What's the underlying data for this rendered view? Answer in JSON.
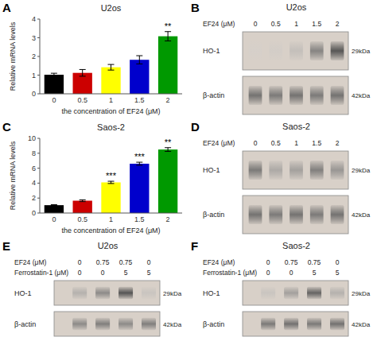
{
  "chart_data": [
    {
      "type": "bar",
      "panel_label": "A",
      "title": "U2os",
      "xlabel": "the concentration of EF24 (μM)",
      "ylabel": "Relative mRNA levels",
      "categories": [
        "0",
        "0.5",
        "1",
        "1.5",
        "2"
      ],
      "values": [
        1.02,
        1.12,
        1.42,
        1.82,
        3.08
      ],
      "errors": [
        0.08,
        0.18,
        0.15,
        0.22,
        0.25
      ],
      "colors": [
        "#000000",
        "#cc0000",
        "#ffff00",
        "#0000cc",
        "#009900"
      ],
      "ylim": [
        0,
        4
      ],
      "yticks": [
        0,
        1,
        2,
        3,
        4
      ],
      "grid": false,
      "annotations": [
        {
          "text": "**",
          "x": "2"
        }
      ]
    },
    {
      "type": "bar",
      "panel_label": "C",
      "title": "Saos-2",
      "xlabel": "the concentration of EF24 (μM)",
      "ylabel": "Relative mRNA levels",
      "categories": [
        "0",
        "0.5",
        "1",
        "1.5",
        "2"
      ],
      "values": [
        1.05,
        1.65,
        4.1,
        6.6,
        8.5
      ],
      "errors": [
        0.07,
        0.12,
        0.15,
        0.2,
        0.25
      ],
      "colors": [
        "#000000",
        "#cc0000",
        "#ffff00",
        "#0000cc",
        "#009900"
      ],
      "ylim": [
        0,
        10
      ],
      "yticks": [
        0,
        2,
        4,
        6,
        8,
        10
      ],
      "grid": false,
      "annotations": [
        {
          "text": "***",
          "x": "1"
        },
        {
          "text": "***",
          "x": "1.5"
        },
        {
          "text": "**",
          "x": "2"
        }
      ]
    },
    {
      "type": "blot",
      "panel_label": "B",
      "title": "U2os",
      "color": "#d8d0c8",
      "lane_labels": [
        {
          "name": "EF24 (μM)",
          "labels": [
            "0",
            "0.5",
            "1",
            "1.5",
            "2"
          ]
        }
      ],
      "series": [
        {
          "name": "HO-1",
          "size_label": "29kDa",
          "values": [
            0.25,
            0.3,
            0.45,
            0.78,
            0.95
          ]
        },
        {
          "name": "β-actin",
          "size_label": "42kDa",
          "values": [
            0.85,
            0.82,
            0.85,
            0.82,
            0.85
          ]
        }
      ]
    },
    {
      "type": "blot",
      "panel_label": "D",
      "title": "Saos-2",
      "color": "#d8d0c8",
      "lane_labels": [
        {
          "name": "EF24 (μM)",
          "labels": [
            "0",
            "0.5",
            "1",
            "1.5",
            "2"
          ]
        }
      ],
      "series": [
        {
          "name": "HO-1",
          "size_label": "29kDa",
          "values": [
            0.82,
            0.6,
            0.65,
            0.8,
            0.7
          ]
        },
        {
          "name": "β-actin",
          "size_label": "42kDa",
          "values": [
            0.85,
            0.82,
            0.85,
            0.82,
            0.85
          ]
        }
      ]
    },
    {
      "type": "blot",
      "panel_label": "E",
      "title": "U2os",
      "color": "#d8d0c8",
      "lane_labels": [
        {
          "name": "EF24 (μM)",
          "labels": [
            "0",
            "0.75",
            "0.75",
            "0"
          ]
        },
        {
          "name": "Ferrostatin-1 (μM)",
          "labels": [
            "0",
            "0",
            "5",
            "5"
          ]
        }
      ],
      "series": [
        {
          "name": "HO-1",
          "size_label": "29kDa",
          "values": [
            0.55,
            0.75,
            0.95,
            0.4
          ]
        },
        {
          "name": "β-actin",
          "size_label": "42kDa",
          "values": [
            0.75,
            0.8,
            0.75,
            0.8
          ]
        }
      ]
    },
    {
      "type": "blot",
      "panel_label": "F",
      "title": "Saos-2",
      "color": "#d8d0c8",
      "lane_labels": [
        {
          "name": "EF24 (μM)",
          "labels": [
            "0",
            "0.75",
            "0.75",
            "0"
          ]
        },
        {
          "name": "Ferrostatin-1 (μM)",
          "labels": [
            "0",
            "0",
            "5",
            "5"
          ]
        }
      ],
      "series": [
        {
          "name": "HO-1",
          "size_label": "29kDa",
          "values": [
            0.4,
            0.65,
            0.9,
            0.55
          ]
        },
        {
          "name": "β-actin",
          "size_label": "42kDa",
          "values": [
            0.82,
            0.85,
            0.82,
            0.85
          ]
        }
      ]
    }
  ]
}
